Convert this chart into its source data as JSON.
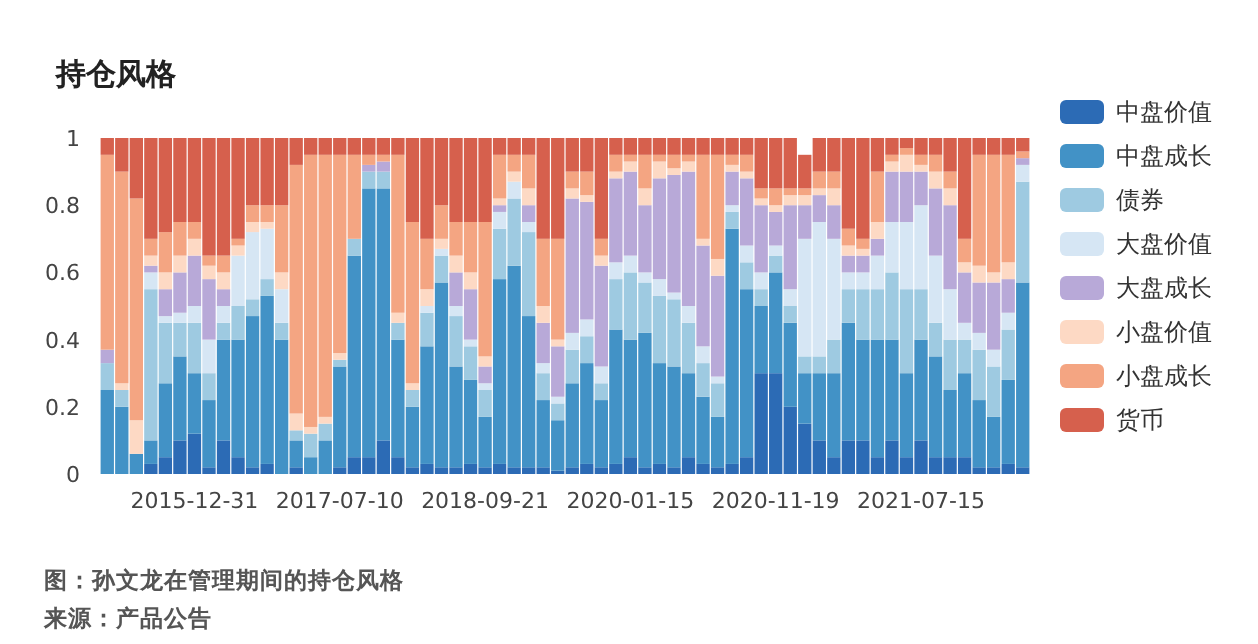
{
  "chart_data": {
    "type": "bar",
    "title": "持仓风格",
    "stacked": true,
    "legend": "right",
    "ylim": [
      0,
      1
    ],
    "yticks": [
      0,
      0.2,
      0.4,
      0.6,
      0.8,
      1
    ],
    "categories": [
      null,
      null,
      null,
      null,
      null,
      null,
      "2015-12-31",
      null,
      null,
      null,
      null,
      null,
      null,
      null,
      null,
      null,
      "2017-07-10",
      null,
      null,
      null,
      null,
      null,
      null,
      null,
      null,
      null,
      "2018-09-21",
      null,
      null,
      null,
      null,
      null,
      null,
      null,
      null,
      null,
      "2020-01-15",
      null,
      null,
      null,
      null,
      null,
      null,
      null,
      null,
      null,
      "2020-11-19",
      null,
      null,
      null,
      null,
      null,
      null,
      null,
      null,
      null,
      "2021-07-15",
      null,
      null,
      null,
      null,
      null,
      null,
      null
    ],
    "series": [
      {
        "name": "中盘价值",
        "color": "#2c6bb5",
        "values": [
          0,
          0,
          0,
          0.03,
          0.05,
          0.1,
          0.12,
          0.02,
          0.1,
          0.05,
          0.02,
          0.03,
          0,
          0.02,
          0,
          0,
          0.02,
          0.05,
          0.05,
          0.1,
          0.05,
          0.02,
          0.03,
          0.02,
          0.02,
          0.03,
          0.02,
          0.03,
          0.02,
          0.02,
          0.02,
          0.01,
          0.02,
          0.03,
          0.02,
          0.03,
          0.05,
          0.02,
          0.03,
          0.02,
          0.05,
          0.03,
          0.02,
          0.03,
          0.05,
          0.3,
          0.3,
          0.2,
          0.15,
          0.1,
          0.05,
          0.1,
          0.1,
          0.05,
          0.1,
          0.05,
          0.1,
          0.05,
          0.05,
          0.05,
          0.02,
          0.02,
          0.03,
          0.02
        ]
      },
      {
        "name": "中盘成长",
        "color": "#4292c6",
        "values": [
          0.25,
          0.2,
          0.06,
          0.07,
          0.22,
          0.25,
          0.18,
          0.2,
          0.3,
          0.35,
          0.45,
          0.5,
          0.4,
          0.08,
          0.05,
          0.1,
          0.3,
          0.6,
          0.8,
          0.75,
          0.35,
          0.18,
          0.35,
          0.55,
          0.3,
          0.25,
          0.15,
          0.55,
          0.6,
          0.45,
          0.2,
          0.15,
          0.25,
          0.3,
          0.2,
          0.4,
          0.35,
          0.4,
          0.3,
          0.3,
          0.25,
          0.2,
          0.15,
          0.7,
          0.5,
          0.2,
          0.3,
          0.25,
          0.15,
          0.2,
          0.25,
          0.35,
          0.3,
          0.35,
          0.3,
          0.25,
          0.3,
          0.3,
          0.2,
          0.25,
          0.2,
          0.15,
          0.25,
          0.55
        ]
      },
      {
        "name": "债券",
        "color": "#9ecae1",
        "values": [
          0.08,
          0.05,
          0,
          0.45,
          0.18,
          0.1,
          0.15,
          0.08,
          0.05,
          0.1,
          0.05,
          0.05,
          0.05,
          0.03,
          0.07,
          0.05,
          0.02,
          0.05,
          0.05,
          0.05,
          0.05,
          0.05,
          0.1,
          0.08,
          0.15,
          0.1,
          0.08,
          0.15,
          0.2,
          0.25,
          0.08,
          0.05,
          0.1,
          0.08,
          0.05,
          0.15,
          0.2,
          0.15,
          0.2,
          0.2,
          0.15,
          0.1,
          0.1,
          0.05,
          0.08,
          0.05,
          0.05,
          0.05,
          0.05,
          0.05,
          0.1,
          0.1,
          0.15,
          0.15,
          0.2,
          0.25,
          0.15,
          0.1,
          0.15,
          0.1,
          0.15,
          0.15,
          0.15,
          0.3
        ]
      },
      {
        "name": "大盘价值",
        "color": "#d6e6f4",
        "values": [
          0,
          0,
          0,
          0.05,
          0.02,
          0.03,
          0.05,
          0.1,
          0.05,
          0.15,
          0.2,
          0.15,
          0.1,
          0,
          0,
          0,
          0,
          0,
          0,
          0,
          0,
          0,
          0.02,
          0.02,
          0.03,
          0.02,
          0.02,
          0.05,
          0.05,
          0.03,
          0.03,
          0.02,
          0.05,
          0.05,
          0.05,
          0.05,
          0.05,
          0.03,
          0.05,
          0.02,
          0.05,
          0.05,
          0.02,
          0.02,
          0.05,
          0.05,
          0.03,
          0.05,
          0.35,
          0.4,
          0.3,
          0.05,
          0.05,
          0.1,
          0.15,
          0.2,
          0.25,
          0.2,
          0.15,
          0.05,
          0.05,
          0.05,
          0.05,
          0.05
        ]
      },
      {
        "name": "大盘成长",
        "color": "#b8a9d8",
        "values": [
          0.04,
          0,
          0,
          0.02,
          0.08,
          0.12,
          0.15,
          0.18,
          0.05,
          0,
          0,
          0,
          0,
          0,
          0,
          0,
          0,
          0,
          0.02,
          0.03,
          0,
          0,
          0,
          0,
          0.1,
          0.15,
          0.05,
          0.02,
          0,
          0.05,
          0.12,
          0.15,
          0.4,
          0.35,
          0.3,
          0.25,
          0.25,
          0.2,
          0.3,
          0.35,
          0.4,
          0.3,
          0.3,
          0.1,
          0.2,
          0.2,
          0.1,
          0.25,
          0.1,
          0.08,
          0.1,
          0.05,
          0.05,
          0.05,
          0.15,
          0.15,
          0.1,
          0.2,
          0.25,
          0.15,
          0.15,
          0.2,
          0.1,
          0.02
        ]
      },
      {
        "name": "小盘价值",
        "color": "#fdd9c4",
        "values": [
          0,
          0.02,
          0.1,
          0.03,
          0.05,
          0.05,
          0.05,
          0.04,
          0.05,
          0.03,
          0.03,
          0.02,
          0.05,
          0.05,
          0.02,
          0.02,
          0.02,
          0,
          0,
          0,
          0.03,
          0.02,
          0.05,
          0.03,
          0.05,
          0.05,
          0.03,
          0.02,
          0.03,
          0.05,
          0.05,
          0.02,
          0.03,
          0.02,
          0.03,
          0.02,
          0.03,
          0.05,
          0.05,
          0.02,
          0.03,
          0.02,
          0.05,
          0.02,
          0.02,
          0.02,
          0.02,
          0.03,
          0.03,
          0.02,
          0.05,
          0.03,
          0.02,
          0.05,
          0.03,
          0.05,
          0.02,
          0.05,
          0.05,
          0.03,
          0.05,
          0.03,
          0.05,
          0
        ]
      },
      {
        "name": "小盘成长",
        "color": "#f4a582",
        "values": [
          0.58,
          0.63,
          0.66,
          0.05,
          0.12,
          0.1,
          0.05,
          0.03,
          0.05,
          0.02,
          0.05,
          0.05,
          0.2,
          0.74,
          0.81,
          0.78,
          0.59,
          0.25,
          0.03,
          0.02,
          0.47,
          0.48,
          0.15,
          0.1,
          0.1,
          0.15,
          0.4,
          0.13,
          0.05,
          0.1,
          0.2,
          0.3,
          0.05,
          0.07,
          0.05,
          0.05,
          0.02,
          0.1,
          0.02,
          0.04,
          0.02,
          0.25,
          0.31,
          0.03,
          0.05,
          0.03,
          0.05,
          0.02,
          0.02,
          0.05,
          0.05,
          0.05,
          0.03,
          0.15,
          0.02,
          0.02,
          0.03,
          0.05,
          0.05,
          0.07,
          0.33,
          0.35,
          0.32,
          0.02
        ]
      },
      {
        "name": "货币",
        "color": "#d6604d",
        "values": [
          0.05,
          0.1,
          0.18,
          0.3,
          0.28,
          0.25,
          0.25,
          0.35,
          0.35,
          0.3,
          0.2,
          0.2,
          0.2,
          0.08,
          0.05,
          0.05,
          0.05,
          0.05,
          0.05,
          0.05,
          0.05,
          0.25,
          0.3,
          0.2,
          0.25,
          0.25,
          0.25,
          0.05,
          0.05,
          0.05,
          0.3,
          0.3,
          0.1,
          0.1,
          0.3,
          0.05,
          0.05,
          0.05,
          0.05,
          0.05,
          0.05,
          0.05,
          0.05,
          0.05,
          0.05,
          0.15,
          0.15,
          0.15,
          0.1,
          0.1,
          0.1,
          0.27,
          0.3,
          0.1,
          0.05,
          0.03,
          0.05,
          0.05,
          0.1,
          0.3,
          0.05,
          0.05,
          0.05,
          0.04
        ]
      }
    ],
    "annotations": [
      "图：孙文龙在管理期间的持仓风格",
      "来源：产品公告"
    ]
  }
}
